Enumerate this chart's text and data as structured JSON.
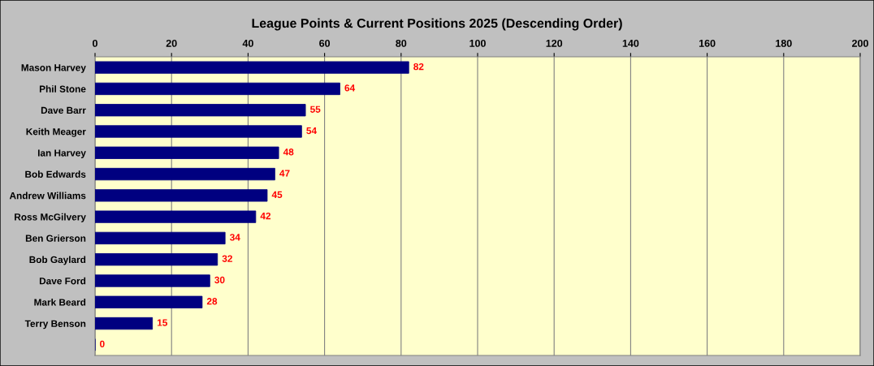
{
  "chart_data": {
    "type": "bar",
    "orientation": "horizontal",
    "title": "League Points & Current Positions 2025 (Descending Order)",
    "categories": [
      "Mason Harvey",
      "Phil Stone",
      "Dave Barr",
      "Keith Meager",
      "Ian Harvey",
      "Bob Edwards",
      "Andrew Williams",
      "Ross McGilvery",
      "Ben Grierson",
      "Bob Gaylard",
      "Dave Ford",
      "Mark Beard",
      "Terry Benson",
      null
    ],
    "values": [
      82,
      64,
      55,
      54,
      48,
      47,
      45,
      42,
      34,
      32,
      30,
      28,
      15,
      0
    ],
    "color": "#000080",
    "data_labels": true,
    "xlim": [
      0,
      200
    ],
    "xticks": [
      0,
      20,
      40,
      60,
      80,
      100,
      120,
      140,
      160,
      180,
      200
    ],
    "grid": "x",
    "legend": false
  }
}
